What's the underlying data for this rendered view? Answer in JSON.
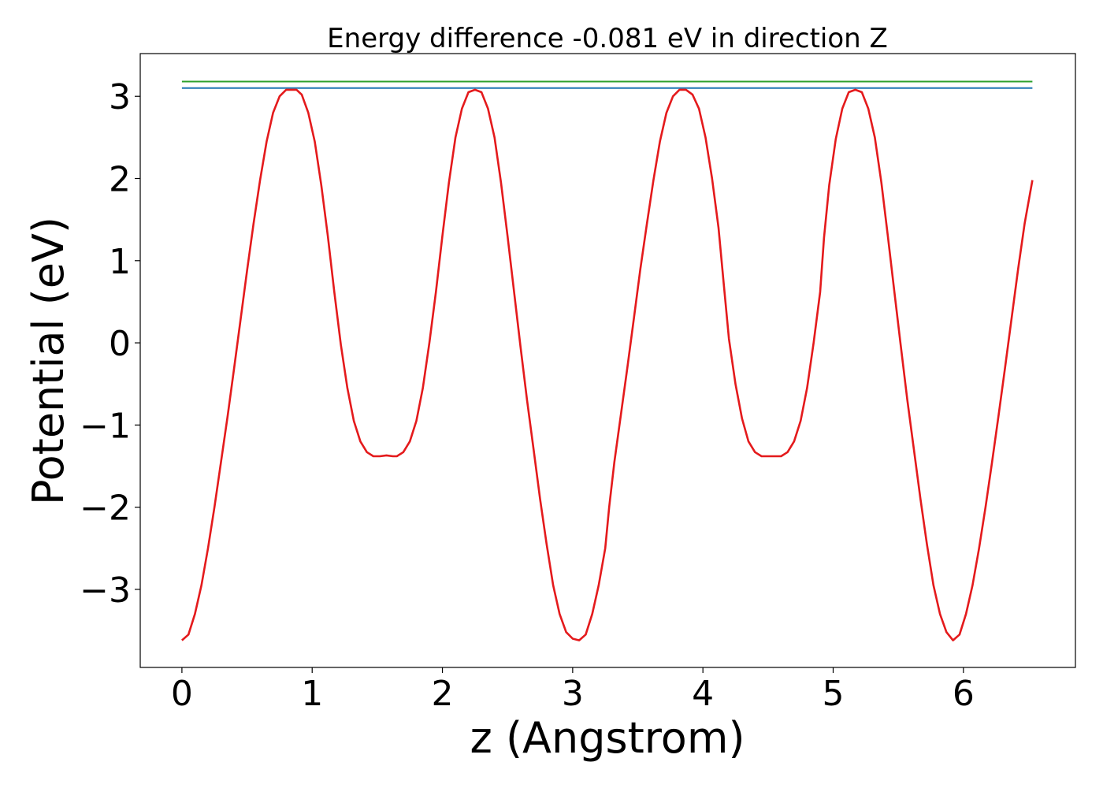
{
  "chart_data": {
    "type": "line",
    "title": "Energy difference -0.081 eV in direction Z",
    "xlabel": "z (Angstrom)",
    "ylabel": "Potential (eV)",
    "xlim": [
      -0.32,
      6.86
    ],
    "ylim": [
      -3.95,
      3.52
    ],
    "xticks": [
      0,
      1,
      2,
      3,
      4,
      5,
      6
    ],
    "yticks": [
      -3,
      -2,
      -1,
      0,
      1,
      2,
      3
    ],
    "xtick_labels": [
      "0",
      "1",
      "2",
      "3",
      "4",
      "5",
      "6"
    ],
    "ytick_labels": [
      "−3",
      "−2",
      "−1",
      "0",
      "1",
      "2",
      "3"
    ],
    "grid": false,
    "series": [
      {
        "color": "#2ca02c",
        "x": [
          0,
          6.53
        ],
        "y": [
          3.18,
          3.18
        ]
      },
      {
        "color": "#1f77b4",
        "x": [
          0,
          6.53
        ],
        "y": [
          3.1,
          3.1
        ]
      },
      {
        "color": "#e41a1c",
        "x": [
          0,
          0.05,
          0.1,
          0.15,
          0.2,
          0.25,
          0.3,
          0.35,
          0.4,
          0.45,
          0.5,
          0.55,
          0.6,
          0.65,
          0.7,
          0.75,
          0.8,
          0.85,
          0.88,
          0.92,
          0.97,
          1.02,
          1.07,
          1.12,
          1.17,
          1.22,
          1.27,
          1.32,
          1.37,
          1.42,
          1.47,
          1.52,
          1.57,
          1.62,
          1.65,
          1.7,
          1.75,
          1.8,
          1.85,
          1.9,
          1.95,
          2.0,
          2.05,
          2.1,
          2.15,
          2.2,
          2.25,
          2.3,
          2.35,
          2.4,
          2.45,
          2.5,
          2.55,
          2.6,
          2.65,
          2.7,
          2.75,
          2.8,
          2.85,
          2.9,
          2.95,
          3.0,
          3.05,
          3.1,
          3.15,
          3.2,
          3.25,
          3.28,
          3.32,
          3.37,
          3.42,
          3.47,
          3.52,
          3.57,
          3.62,
          3.67,
          3.72,
          3.77,
          3.82,
          3.87,
          3.92,
          3.97,
          4.02,
          4.07,
          4.12,
          4.16,
          4.2,
          4.25,
          4.3,
          4.35,
          4.4,
          4.45,
          4.5,
          4.55,
          4.6,
          4.65,
          4.7,
          4.75,
          4.8,
          4.85,
          4.9,
          4.93,
          4.97,
          5.02,
          5.07,
          5.12,
          5.17,
          5.22,
          5.27,
          5.32,
          5.37,
          5.42,
          5.47,
          5.52,
          5.57,
          5.62,
          5.67,
          5.72,
          5.77,
          5.82,
          5.87,
          5.92,
          5.97,
          6.02,
          6.07,
          6.12,
          6.17,
          6.22,
          6.27,
          6.32,
          6.37,
          6.42,
          6.47,
          6.53
        ],
        "y": [
          -3.62,
          -3.55,
          -3.3,
          -2.95,
          -2.5,
          -2.0,
          -1.45,
          -0.9,
          -0.32,
          0.28,
          0.88,
          1.45,
          1.98,
          2.45,
          2.8,
          3.0,
          3.08,
          3.08,
          3.08,
          3.02,
          2.8,
          2.45,
          1.92,
          1.3,
          0.62,
          -0.02,
          -0.55,
          -0.95,
          -1.2,
          -1.33,
          -1.38,
          -1.38,
          -1.37,
          -1.38,
          -1.38,
          -1.33,
          -1.2,
          -0.95,
          -0.55,
          0.0,
          0.62,
          1.3,
          1.95,
          2.5,
          2.85,
          3.05,
          3.08,
          3.05,
          2.85,
          2.5,
          1.95,
          1.3,
          0.62,
          -0.05,
          -0.7,
          -1.3,
          -1.9,
          -2.45,
          -2.95,
          -3.3,
          -3.52,
          -3.6,
          -3.62,
          -3.55,
          -3.3,
          -2.95,
          -2.5,
          -2.0,
          -1.45,
          -0.88,
          -0.3,
          0.3,
          0.9,
          1.45,
          1.98,
          2.45,
          2.8,
          3.0,
          3.08,
          3.08,
          3.02,
          2.85,
          2.5,
          2.0,
          1.4,
          0.72,
          0.05,
          -0.5,
          -0.92,
          -1.2,
          -1.33,
          -1.38,
          -1.38,
          -1.38,
          -1.38,
          -1.33,
          -1.2,
          -0.95,
          -0.55,
          0.0,
          0.62,
          1.28,
          1.92,
          2.48,
          2.85,
          3.05,
          3.08,
          3.05,
          2.85,
          2.5,
          1.95,
          1.3,
          0.62,
          -0.05,
          -0.7,
          -1.3,
          -1.9,
          -2.45,
          -2.95,
          -3.3,
          -3.52,
          -3.62,
          -3.55,
          -3.3,
          -2.95,
          -2.5,
          -2.0,
          -1.45,
          -0.88,
          -0.3,
          0.3,
          0.9,
          1.45,
          1.98
        ]
      }
    ]
  }
}
